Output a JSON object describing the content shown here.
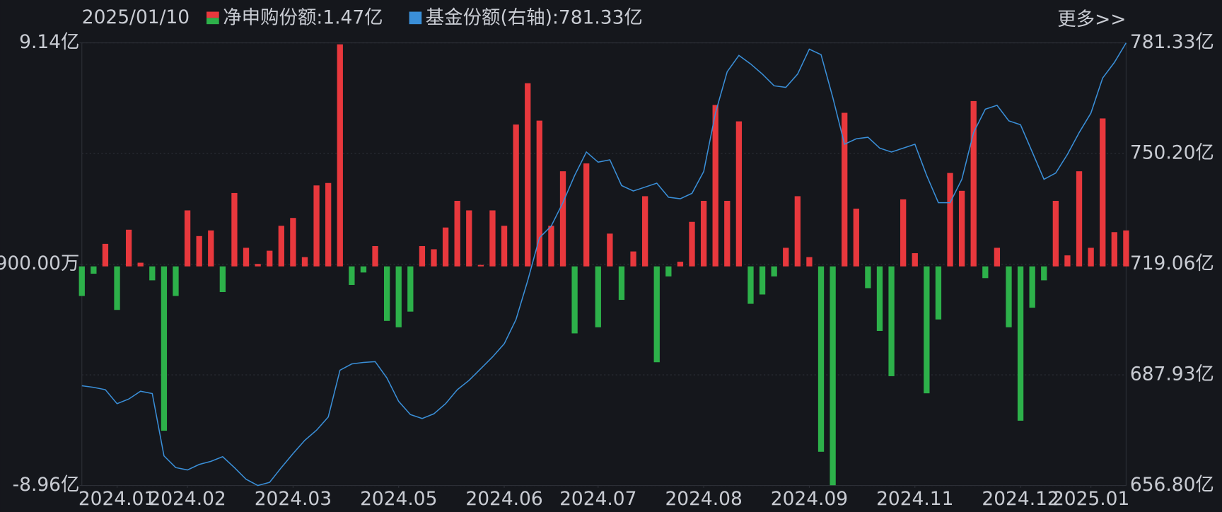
{
  "chart_data": {
    "type": "bar-line",
    "date": "2025/01/10",
    "more": "更多>>",
    "series": [
      {
        "name": "净申购份额",
        "last_label": ":1.47亿",
        "up_color": "#e8383d",
        "down_color": "#2db14a",
        "values": [
          -1.21,
          -0.3,
          0.92,
          -1.78,
          1.5,
          0.15,
          -0.57,
          -6.72,
          -1.21,
          2.29,
          1.24,
          1.47,
          -1.05,
          3.0,
          0.76,
          0.1,
          0.64,
          1.66,
          1.98,
          0.38,
          3.31,
          3.41,
          9.08,
          -0.76,
          -0.25,
          0.83,
          -2.23,
          -2.49,
          -1.85,
          0.83,
          0.7,
          1.59,
          2.68,
          2.29,
          0.06,
          2.29,
          1.66,
          5.8,
          7.49,
          5.96,
          1.66,
          3.89,
          -2.74,
          4.21,
          -2.49,
          1.34,
          -1.37,
          0.61,
          2.87,
          -3.92,
          -0.41,
          0.19,
          1.82,
          2.68,
          6.6,
          2.68,
          5.93,
          -1.53,
          -1.15,
          -0.41,
          0.76,
          2.87,
          0.38,
          -7.58,
          -8.95,
          6.28,
          2.36,
          -0.89,
          -2.64,
          -4.49,
          2.74,
          0.54,
          -5.19,
          -2.17,
          3.82,
          3.09,
          6.76,
          -0.48,
          0.76,
          -2.49,
          -6.31,
          -1.69,
          -0.57,
          2.68,
          0.45,
          3.89,
          0.76,
          6.05,
          1.4,
          1.47
        ]
      },
      {
        "name": "基金份额(右轴)",
        "last_label": ":781.33亿",
        "axis": "y2",
        "color": "#3a8fd8",
        "values": [
          684.86,
          684.42,
          683.76,
          679.82,
          681.13,
          683.32,
          682.67,
          665.13,
          661.84,
          661.18,
          662.72,
          663.6,
          664.91,
          661.84,
          658.55,
          656.8,
          657.68,
          661.84,
          665.79,
          669.51,
          672.36,
          676.09,
          689.24,
          691.0,
          691.43,
          691.65,
          687.05,
          680.47,
          676.75,
          675.65,
          676.97,
          679.82,
          683.76,
          686.39,
          689.68,
          692.97,
          696.69,
          703.49,
          714.45,
          726.51,
          729.79,
          736.37,
          744.04,
          750.62,
          747.77,
          748.43,
          741.19,
          739.66,
          740.75,
          741.85,
          737.9,
          737.47,
          739.0,
          745.14,
          761.58,
          773.2,
          777.8,
          775.39,
          772.54,
          769.25,
          768.81,
          772.54,
          779.55,
          778.02,
          765.96,
          752.81,
          754.34,
          754.78,
          751.71,
          750.62,
          751.71,
          752.81,
          744.04,
          736.37,
          736.37,
          742.95,
          756.1,
          762.67,
          763.77,
          759.39,
          758.29,
          750.62,
          742.95,
          744.7,
          749.96,
          756.1,
          761.58,
          771.44,
          775.83,
          781.33
        ]
      }
    ],
    "ylim": [
      -8.96,
      9.14
    ],
    "yticks": [
      {
        "value": 9.14,
        "label": "9.14亿"
      },
      {
        "value": 0.09,
        "label": "900.00万"
      },
      {
        "value": -8.96,
        "label": "-8.96亿"
      }
    ],
    "y2lim": [
      656.8,
      781.33
    ],
    "y2ticks": [
      {
        "value": 781.33,
        "label": "781.33亿"
      },
      {
        "value": 750.2,
        "label": "750.20亿"
      },
      {
        "value": 719.06,
        "label": "719.06亿"
      },
      {
        "value": 687.93,
        "label": "687.93亿"
      },
      {
        "value": 656.8,
        "label": "656.80亿"
      }
    ],
    "xticks": [
      {
        "value": 3,
        "label": "2024.01"
      },
      {
        "value": 9,
        "label": "2024.02"
      },
      {
        "value": 18,
        "label": "2024.03"
      },
      {
        "value": 27,
        "label": "2024.05"
      },
      {
        "value": 36,
        "label": "2024.06"
      },
      {
        "value": 44,
        "label": "2024.07"
      },
      {
        "value": 53,
        "label": "2024.08"
      },
      {
        "value": 62,
        "label": "2024.09"
      },
      {
        "value": 71,
        "label": "2024.11"
      },
      {
        "value": 80,
        "label": "2024.12"
      },
      {
        "value": 86,
        "label": "2025.01"
      }
    ],
    "grid": true
  }
}
